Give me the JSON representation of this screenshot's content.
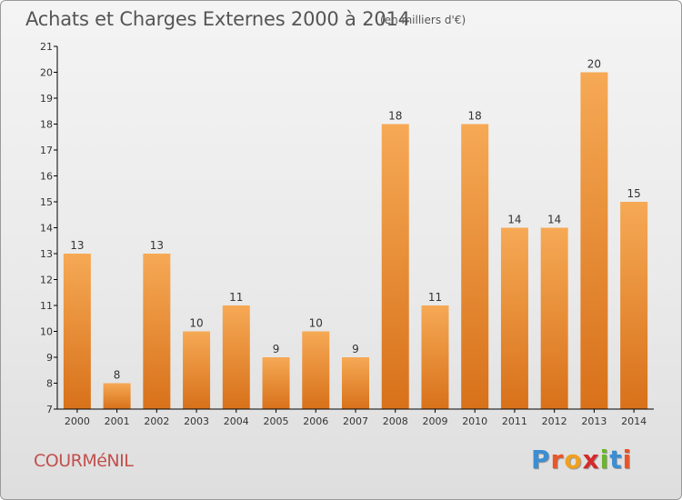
{
  "header": {
    "title": "Achats et Charges Externes 2000 à 2014",
    "subtitle": "(en milliers d'€)"
  },
  "footer": {
    "commune": "COURMéNIL",
    "brand_letters": [
      "P",
      "r",
      "o",
      "x",
      "i",
      "t",
      "i"
    ],
    "brand_colors": [
      "#3b8ed3",
      "#e8562a",
      "#f0a020",
      "#d62a2a",
      "#6bb52c",
      "#3b8ed3",
      "#e8562a"
    ]
  },
  "colors": {
    "bar_top": "#f6a955",
    "bar_bottom": "#d8711a",
    "axis": "#000000",
    "text": "#333333"
  },
  "chart_data": {
    "type": "bar",
    "title": "Achats et Charges Externes 2000 à 2014",
    "subtitle": "(en milliers d'€)",
    "xlabel": "",
    "ylabel": "",
    "categories": [
      "2000",
      "2001",
      "2002",
      "2003",
      "2004",
      "2005",
      "2006",
      "2007",
      "2008",
      "2009",
      "2010",
      "2011",
      "2012",
      "2013",
      "2014"
    ],
    "values": [
      13,
      8,
      13,
      10,
      11,
      9,
      10,
      9,
      18,
      11,
      18,
      14,
      14,
      20,
      15
    ],
    "ylim": [
      7,
      21
    ],
    "yticks": [
      7,
      8,
      9,
      10,
      11,
      12,
      13,
      14,
      15,
      16,
      17,
      18,
      19,
      20,
      21
    ],
    "grid": false,
    "legend": "none"
  }
}
